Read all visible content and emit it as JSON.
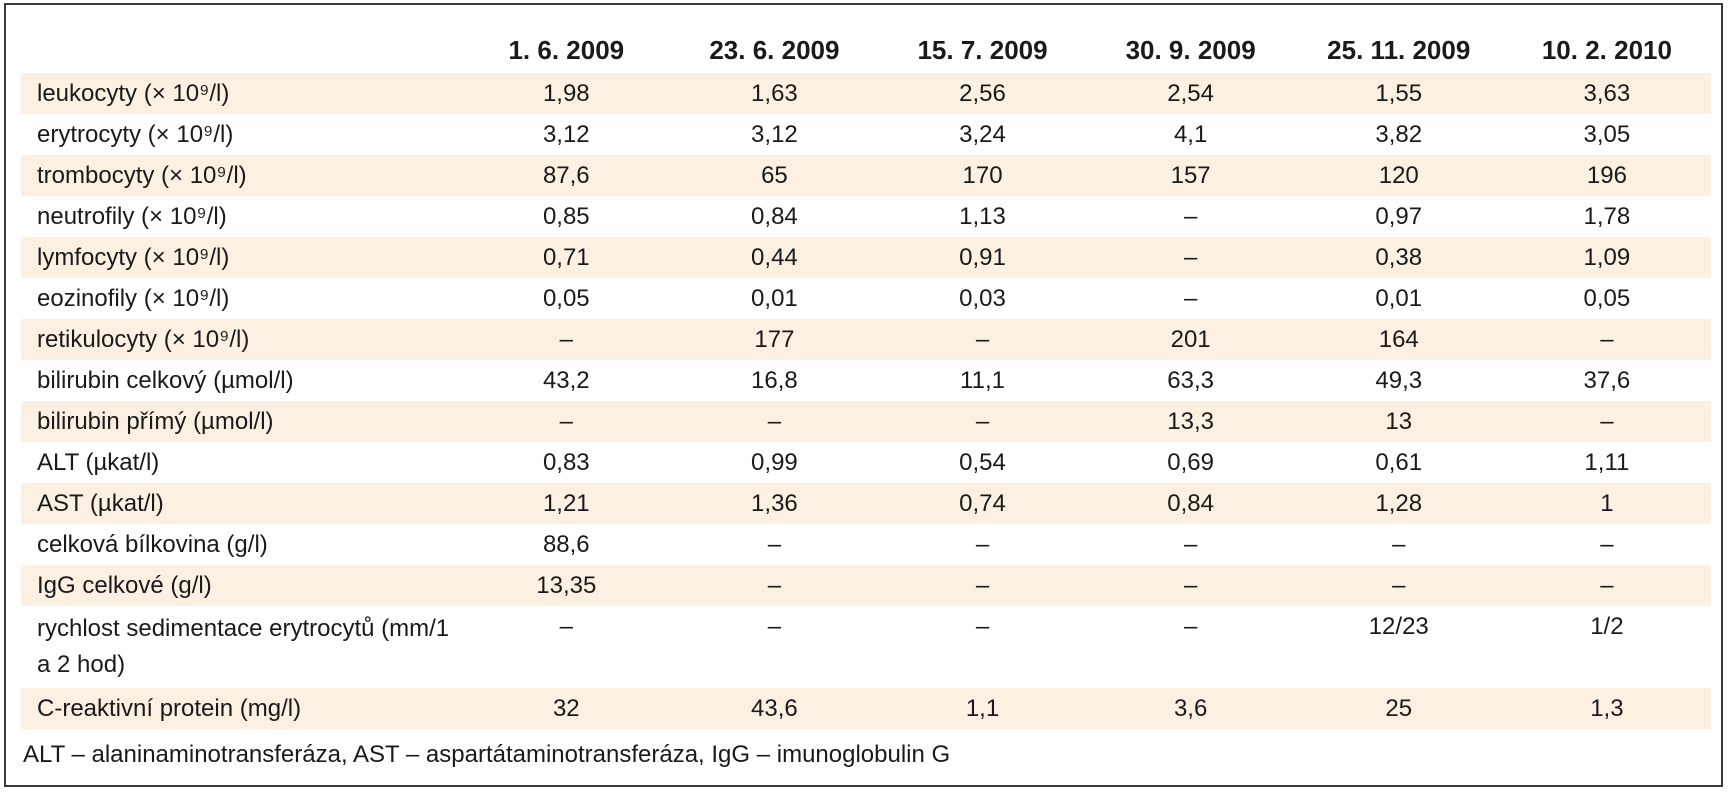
{
  "columns": [
    "1. 6. 2009",
    "23. 6. 2009",
    "15. 7. 2009",
    "30. 9. 2009",
    "25. 11. 2009",
    "10. 2. 2010"
  ],
  "rows": [
    {
      "label": "leukocyty (× 10⁹/l)",
      "values": [
        "1,98",
        "1,63",
        "2,56",
        "2,54",
        "1,55",
        "3,63"
      ]
    },
    {
      "label": "erytrocyty (× 10⁹/l)",
      "values": [
        "3,12",
        "3,12",
        "3,24",
        "4,1",
        "3,82",
        "3,05"
      ]
    },
    {
      "label": "trombocyty (× 10⁹/l)",
      "values": [
        "87,6",
        "65",
        "170",
        "157",
        "120",
        "196"
      ]
    },
    {
      "label": "neutrofily (× 10⁹/l)",
      "values": [
        "0,85",
        "0,84",
        "1,13",
        "–",
        "0,97",
        "1,78"
      ]
    },
    {
      "label": "lymfocyty (× 10⁹/l)",
      "values": [
        "0,71",
        "0,44",
        "0,91",
        "–",
        "0,38",
        "1,09"
      ]
    },
    {
      "label": "eozinofily (× 10⁹/l)",
      "values": [
        "0,05",
        "0,01",
        "0,03",
        "–",
        "0,01",
        "0,05"
      ]
    },
    {
      "label": "retikulocyty (× 10⁹/l)",
      "values": [
        "–",
        "177",
        "–",
        "201",
        "164",
        "–"
      ]
    },
    {
      "label": "bilirubin celkový (µmol/l)",
      "values": [
        "43,2",
        "16,8",
        "11,1",
        "63,3",
        "49,3",
        "37,6"
      ]
    },
    {
      "label": "bilirubin přímý (µmol/l)",
      "values": [
        "–",
        "–",
        "–",
        "13,3",
        "13",
        "–"
      ]
    },
    {
      "label": "ALT (µkat/l)",
      "values": [
        "0,83",
        "0,99",
        "0,54",
        "0,69",
        "0,61",
        "1,11"
      ]
    },
    {
      "label": "AST (µkat/l)",
      "values": [
        "1,21",
        "1,36",
        "0,74",
        "0,84",
        "1,28",
        "1"
      ]
    },
    {
      "label": "celková bílkovina (g/l)",
      "values": [
        "88,6",
        "–",
        "–",
        "–",
        "–",
        "–"
      ]
    },
    {
      "label": "IgG celkové (g/l)",
      "values": [
        "13,35",
        "–",
        "–",
        "–",
        "–",
        "–"
      ]
    },
    {
      "label": "rychlost sedimentace erytrocytů (mm/1 a 2 hod)",
      "values": [
        "–",
        "–",
        "–",
        "–",
        "12/23",
        "1/2"
      ]
    },
    {
      "label": "C-reaktivní protein (mg/l)",
      "values": [
        "32",
        "43,6",
        "1,1",
        "3,6",
        "25",
        "1,3"
      ]
    }
  ],
  "footnote": "ALT – alaninaminotransferáza, AST – aspartátaminotransferáza, IgG – imunoglobulin G",
  "colors": {
    "row_shade": "#fcf0e3",
    "border": "#3a3a3a"
  }
}
